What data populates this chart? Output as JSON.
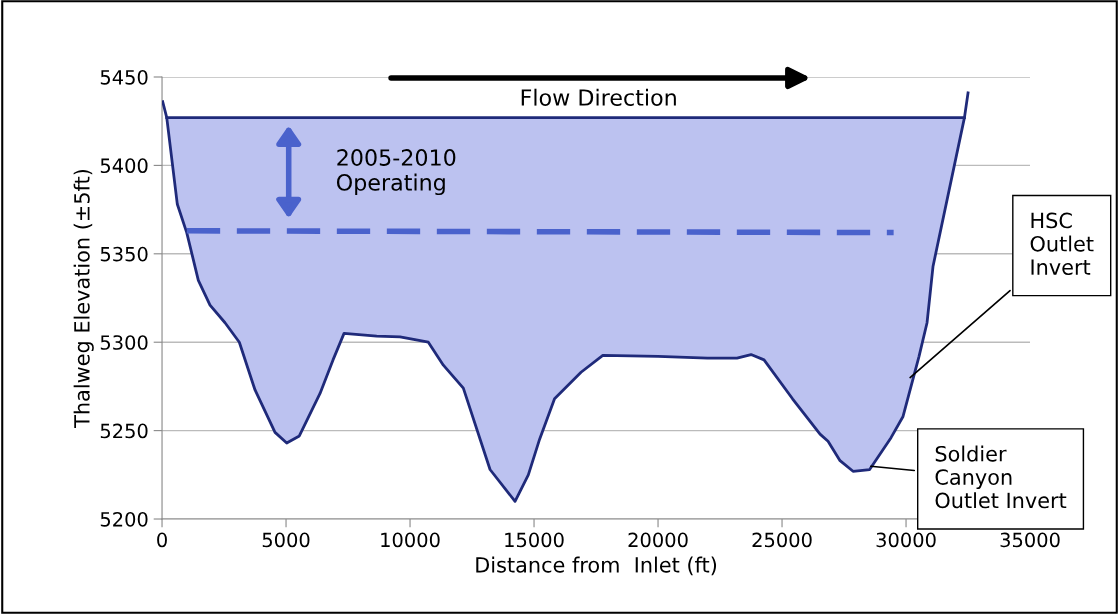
{
  "chart_data": {
    "type": "line",
    "xlabel": "Distance from  Inlet (ft)",
    "ylabel": "Thalweg Elevation (±5ft)",
    "xlim": [
      0,
      35000
    ],
    "xticks": [
      0,
      5000,
      10000,
      15000,
      20000,
      25000,
      30000,
      35000
    ],
    "ylim": [
      5200,
      5450
    ],
    "yticks": [
      5200,
      5250,
      5300,
      5350,
      5400,
      5450
    ],
    "grid": "y",
    "series": [
      {
        "color": "#1f2a7a",
        "x": [
          28,
          190,
          617,
          996,
          1464,
          1935,
          2540,
          3117,
          3750,
          4556,
          5028,
          5536,
          6371,
          6895,
          7339,
          8657,
          9597,
          10738,
          11343,
          12149,
          13226,
          14234,
          14770,
          15222,
          15827,
          16895,
          17774,
          20000,
          21996,
          23185,
          23750,
          24274,
          25423,
          26532,
          26855,
          27339,
          27863,
          28532,
          29395,
          29879,
          30524,
          30847,
          31089,
          32355,
          32500
        ],
        "values": [
          5436,
          5427,
          5378,
          5362,
          5335,
          5321,
          5311,
          5300,
          5273,
          5249,
          5243,
          5247,
          5271,
          5290,
          5305,
          5303.5,
          5303,
          5300,
          5287,
          5274,
          5228,
          5210,
          5225,
          5245,
          5268,
          5283,
          5292.5,
          5292,
          5291,
          5291,
          5293,
          5290,
          5268,
          5248,
          5244,
          5233,
          5227,
          5228,
          5246,
          5258,
          5292,
          5311,
          5343,
          5427,
          5441
        ]
      },
      {
        "type": "line",
        "color": "#1f2a7a",
        "x": [
          190,
          617,
          996,
          1464,
          1935,
          2540,
          3117,
          3750,
          4556,
          5028,
          5536,
          6371,
          6895,
          7339,
          8657,
          9597,
          10738,
          11343,
          12149,
          13226,
          14234,
          14770,
          15222,
          15827,
          16895,
          17774,
          20000,
          21996,
          23185,
          23750,
          24274,
          25423,
          26532,
          26855,
          27339,
          27863,
          28532,
          29395,
          29879,
          30524,
          30847,
          31089,
          32355
        ],
        "values": [
          5427,
          5427,
          5427,
          5427,
          5427,
          5427,
          5427,
          5427,
          5427,
          5427,
          5427,
          5427,
          5427,
          5427,
          5427,
          5427,
          5427,
          5427,
          5427,
          5427,
          5427,
          5427,
          5427,
          5427,
          5427,
          5427,
          5427,
          5427,
          5427,
          5427,
          5427,
          5427,
          5427,
          5427,
          5427,
          5427,
          5427,
          5427,
          5427,
          5427,
          5427,
          5427,
          5427
        ],
        "lower": [
          5427,
          5378,
          5362,
          5335,
          5321,
          5311,
          5300,
          5273,
          5249,
          5243,
          5247,
          5271,
          5290,
          5305,
          5303.5,
          5303,
          5300,
          5287,
          5274,
          5228,
          5210,
          5225,
          5245,
          5268,
          5283,
          5292.5,
          5292,
          5291,
          5291,
          5293,
          5290,
          5268,
          5248,
          5244,
          5233,
          5227,
          5228,
          5246,
          5258,
          5292,
          5311,
          5343,
          5427
        ],
        "upper": [
          5427,
          5427,
          5427,
          5427,
          5427,
          5427,
          5427,
          5427,
          5427,
          5427,
          5427,
          5427,
          5427,
          5427,
          5427,
          5427,
          5427,
          5427,
          5427,
          5427,
          5427,
          5427,
          5427,
          5427,
          5427,
          5427,
          5427,
          5427,
          5427,
          5427,
          5427,
          5427,
          5427,
          5427,
          5427,
          5427,
          5427,
          5427,
          5427,
          5427,
          5427,
          5427,
          5427
        ]
      },
      {
        "type": "line",
        "color": "#4a62cc",
        "line_style": "dashed",
        "x": [
          1000,
          29500
        ],
        "values": [
          5363,
          5362
        ]
      }
    ],
    "annotations": [
      "Flow Direction",
      "2005-2010\nOperating",
      {
        "text": "HSC\nOutlet\nInvert",
        "x": 30080,
        "y": 5279
      },
      {
        "text": "Soldier\nCanyon\nOutlet Invert",
        "x": 28470,
        "y": 5230
      }
    ]
  }
}
